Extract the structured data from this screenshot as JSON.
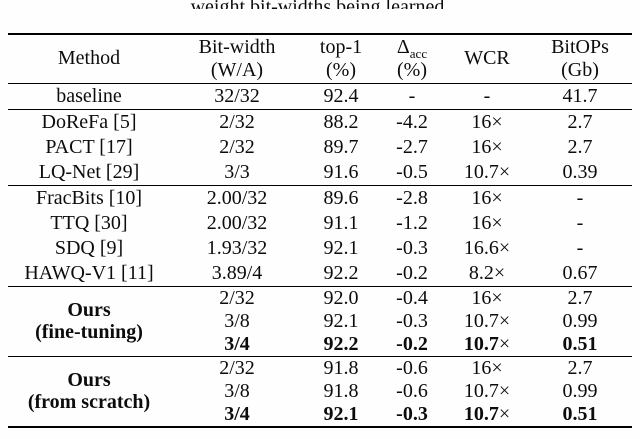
{
  "caption": {
    "clipped_text": "weight bit-widths being learned."
  },
  "table": {
    "columns": [
      {
        "line1": "Method",
        "sub": "",
        "line2": ""
      },
      {
        "line1": "Bit-width",
        "sub": "",
        "line2": "(W/A)"
      },
      {
        "line1": "top-1",
        "sub": "",
        "line2": "(%)"
      },
      {
        "line1": "Δ",
        "sub": "acc",
        "line2": "(%)"
      },
      {
        "line1": "WCR",
        "sub": "",
        "line2": ""
      },
      {
        "line1": "BitOPs",
        "sub": "",
        "line2": "(Gb)"
      }
    ],
    "sections": [
      {
        "rows": [
          {
            "method": "baseline",
            "cells": [
              "32/32",
              "92.4",
              "-",
              "-",
              "41.7"
            ],
            "bold": false
          }
        ]
      },
      {
        "rows": [
          {
            "method": "DoReFa [5]",
            "cells": [
              "2/32",
              "88.2",
              "-4.2",
              "16×",
              "2.7"
            ],
            "bold": false
          },
          {
            "method": "PACT [17]",
            "cells": [
              "2/32",
              "89.7",
              "-2.7",
              "16×",
              "2.7"
            ],
            "bold": false
          },
          {
            "method": "LQ-Net [29]",
            "cells": [
              "3/3",
              "91.6",
              "-0.5",
              "10.7×",
              "0.39"
            ],
            "bold": false
          }
        ]
      },
      {
        "rows": [
          {
            "method": "FracBits [10]",
            "cells": [
              "2.00/32",
              "89.6",
              "-2.8",
              "16×",
              "-"
            ],
            "bold": false
          },
          {
            "method": "TTQ [30]",
            "cells": [
              "2.00/32",
              "91.1",
              "-1.2",
              "16×",
              "-"
            ],
            "bold": false
          },
          {
            "method": "SDQ [9]",
            "cells": [
              "1.93/32",
              "92.1",
              "-0.3",
              "16.6×",
              "-"
            ],
            "bold": false
          },
          {
            "method": "HAWQ-V1 [11]",
            "cells": [
              "3.89/4",
              "92.2",
              "-0.2",
              "8.2×",
              "0.67"
            ],
            "bold": false
          }
        ]
      },
      {
        "group": [
          "Ours",
          "(fine-tuning)"
        ],
        "compact": true,
        "rows": [
          {
            "cells": [
              "2/32",
              "92.0",
              "-0.4",
              "16×",
              "2.7"
            ],
            "bold": false
          },
          {
            "cells": [
              "3/8",
              "92.1",
              "-0.3",
              "10.7×",
              "0.99"
            ],
            "bold": false
          },
          {
            "cells": [
              "3/4",
              "92.2",
              "-0.2",
              "10.7×",
              "0.51"
            ],
            "bold": true
          }
        ]
      },
      {
        "group": [
          "Ours",
          "(from scratch)"
        ],
        "compact": true,
        "rows": [
          {
            "cells": [
              "2/32",
              "91.8",
              "-0.6",
              "16×",
              "2.7"
            ],
            "bold": false
          },
          {
            "cells": [
              "3/8",
              "91.8",
              "-0.6",
              "10.7×",
              "0.99"
            ],
            "bold": false
          },
          {
            "cells": [
              "3/4",
              "92.1",
              "-0.3",
              "10.7×",
              "0.51"
            ],
            "bold": true
          }
        ]
      }
    ]
  }
}
